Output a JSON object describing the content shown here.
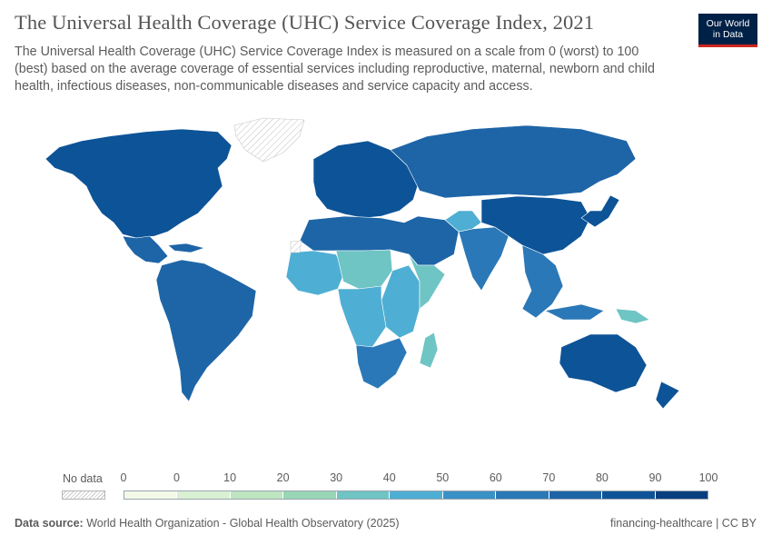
{
  "header": {
    "title": "The Universal Health Coverage (UHC) Service Coverage Index, 2021",
    "subtitle": "The Universal Health Coverage (UHC) Service Coverage Index is measured on a scale from 0 (worst) to 100 (best) based on the average coverage of essential services including reproductive, maternal, newborn and child health, infectious diseases, non-communicable diseases and service capacity and access."
  },
  "logo": {
    "line1": "Our World",
    "line2": "in Data",
    "bg_color": "#002147",
    "accent_color": "#ce261e"
  },
  "legend": {
    "no_data_label": "No data",
    "ticks": [
      "0",
      "0",
      "10",
      "20",
      "30",
      "40",
      "50",
      "60",
      "70",
      "80",
      "90",
      "100"
    ],
    "bin_colors": [
      "#f3fae8",
      "#d9f0d3",
      "#bde5bf",
      "#98d6b6",
      "#6fc4c4",
      "#4faed3",
      "#3a91c6",
      "#2a78b7",
      "#1e65a7",
      "#0d5397",
      "#083f7f"
    ]
  },
  "chart_data": {
    "type": "choropleth",
    "title": "The Universal Health Coverage (UHC) Service Coverage Index, 2021",
    "year": 2021,
    "scale": [
      0,
      100
    ],
    "bins": [
      0,
      10,
      20,
      30,
      40,
      50,
      60,
      70,
      80,
      90,
      100
    ],
    "no_data_regions": [
      "Greenland",
      "Western Sahara"
    ],
    "regions": [
      {
        "name": "North America",
        "value": 80
      },
      {
        "name": "Central America & Caribbean",
        "value": 75
      },
      {
        "name": "South America",
        "value": 75
      },
      {
        "name": "Europe",
        "value": 85
      },
      {
        "name": "Russia",
        "value": 78
      },
      {
        "name": "North Africa & Middle East",
        "value": 72
      },
      {
        "name": "West Africa",
        "value": 42
      },
      {
        "name": "Sahel",
        "value": 35
      },
      {
        "name": "East Africa",
        "value": 45
      },
      {
        "name": "Horn of Africa",
        "value": 35
      },
      {
        "name": "Central Africa",
        "value": 45
      },
      {
        "name": "Southern Africa",
        "value": 65
      },
      {
        "name": "Madagascar",
        "value": 35
      },
      {
        "name": "South Asia",
        "value": 62
      },
      {
        "name": "Afghanistan & Pakistan",
        "value": 45
      },
      {
        "name": "China & Mongolia",
        "value": 80
      },
      {
        "name": "Southeast Asia",
        "value": 65
      },
      {
        "name": "Papua New Guinea",
        "value": 30
      },
      {
        "name": "Australia & New Zealand",
        "value": 85
      },
      {
        "name": "Japan & Korea",
        "value": 85
      }
    ]
  },
  "footer": {
    "source_label": "Data source:",
    "source_text": "World Health Organization - Global Health Observatory (2025)",
    "credit": "financing-healthcare | CC BY"
  }
}
